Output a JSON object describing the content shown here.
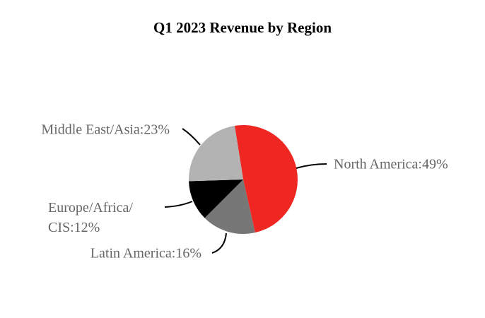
{
  "chart_data": {
    "type": "pie",
    "title": "Q1 2023 Revenue by Region",
    "values": [
      49,
      16,
      12,
      23
    ],
    "value_labels": [
      "North America:49%",
      "Latin America:16%",
      "Europe/Africa/CIS:12%",
      "Middle East/Asia:23%"
    ],
    "colors": [
      "#ee2722",
      "#777777",
      "#000000",
      "#b3b3b3"
    ]
  }
}
